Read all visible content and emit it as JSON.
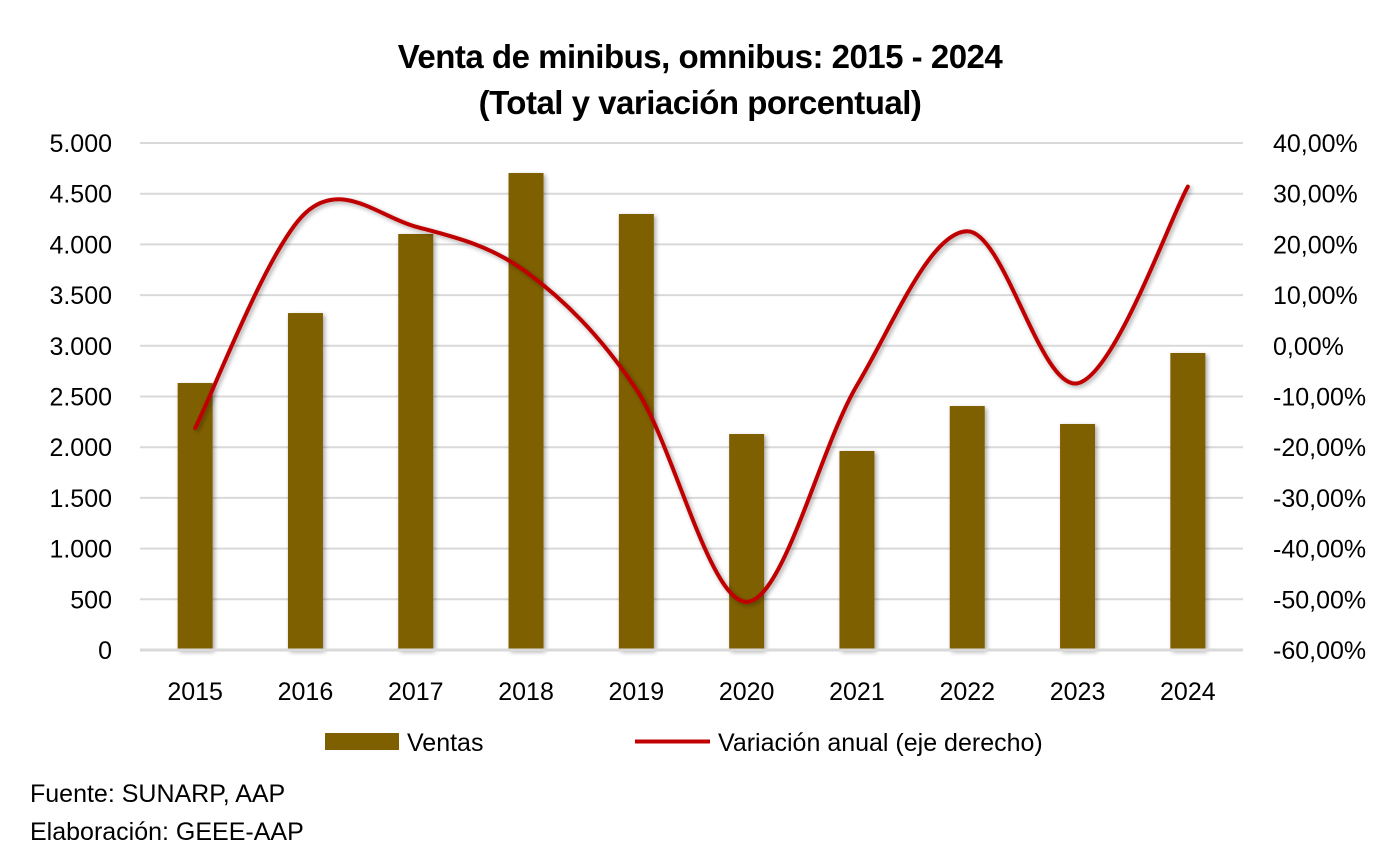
{
  "chart_data": {
    "type": "bar+line",
    "title": "Venta de minibus, omnibus: 2015 - 2024",
    "subtitle": "(Total y variación porcentual)",
    "categories": [
      "2015",
      "2016",
      "2017",
      "2018",
      "2019",
      "2020",
      "2021",
      "2022",
      "2023",
      "2024"
    ],
    "series": [
      {
        "name": "Ventas",
        "type": "bar",
        "axis": "left",
        "color": "#7F6000",
        "values": [
          2633,
          3323,
          4103,
          4704,
          4300,
          2130,
          1963,
          2406,
          2229,
          2929
        ]
      },
      {
        "name": "Variación anual (eje derecho)",
        "type": "line",
        "smooth": true,
        "axis": "right",
        "color": "#C00000",
        "values": [
          -16.2,
          26.2,
          23.5,
          14.6,
          -8.6,
          -50.5,
          -7.8,
          22.6,
          -7.4,
          31.4
        ]
      }
    ],
    "y_left": {
      "range": [
        0,
        5000
      ],
      "ticks": [
        0,
        500,
        1000,
        1500,
        2000,
        2500,
        3000,
        3500,
        4000,
        4500,
        5000
      ],
      "tick_labels": [
        "0",
        "500",
        "1.000",
        "1.500",
        "2.000",
        "2.500",
        "3.000",
        "3.500",
        "4.000",
        "4.500",
        "5.000"
      ]
    },
    "y_right": {
      "range": [
        -60,
        40
      ],
      "ticks": [
        -60,
        -50,
        -40,
        -30,
        -20,
        -10,
        0,
        10,
        20,
        30,
        40
      ],
      "tick_labels": [
        "-60,00%",
        "-50,00%",
        "-40,00%",
        "-30,00%",
        "-20,00%",
        "-10,00%",
        "0,00%",
        "10,00%",
        "20,00%",
        "30,00%",
        "40,00%"
      ]
    },
    "xlabel": "",
    "ylabel": "",
    "grid": true,
    "legend_position": "bottom",
    "grid_color": "#D9D9D9"
  },
  "footnotes": {
    "source": "Fuente: SUNARP, AAP",
    "elaboration": "Elaboración: GEEE-AAP"
  }
}
